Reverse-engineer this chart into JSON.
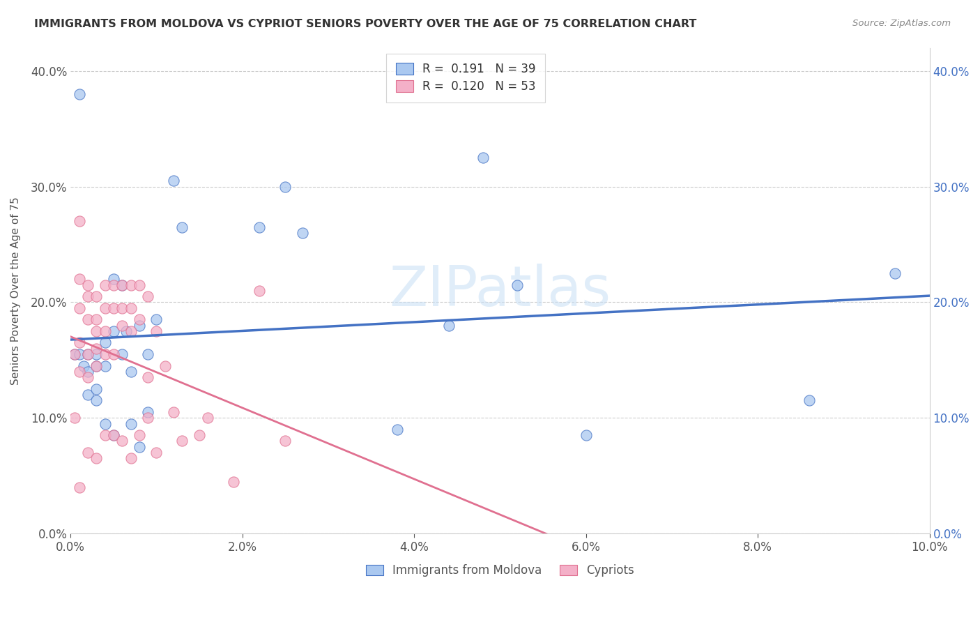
{
  "title": "IMMIGRANTS FROM MOLDOVA VS CYPRIOT SENIORS POVERTY OVER THE AGE OF 75 CORRELATION CHART",
  "source": "Source: ZipAtlas.com",
  "ylabel": "Seniors Poverty Over the Age of 75",
  "xlabel": "",
  "xlim": [
    0.0,
    0.1
  ],
  "ylim": [
    0.0,
    0.42
  ],
  "x_ticks": [
    0.0,
    0.02,
    0.04,
    0.06,
    0.08,
    0.1
  ],
  "y_ticks": [
    0.0,
    0.1,
    0.2,
    0.3,
    0.4
  ],
  "legend_labels": [
    "Immigrants from Moldova",
    "Cypriots"
  ],
  "R_moldova": 0.191,
  "N_moldova": 39,
  "R_cypriot": 0.12,
  "N_cypriot": 53,
  "moldova_color": "#aac8f0",
  "cypriot_color": "#f4b0c8",
  "moldova_line_color": "#4472c4",
  "cypriot_line_color": "#e07090",
  "watermark": "ZIPatlas",
  "background_color": "#ffffff",
  "moldova_x": [
    0.0005,
    0.001,
    0.001,
    0.0015,
    0.002,
    0.002,
    0.002,
    0.003,
    0.003,
    0.003,
    0.003,
    0.004,
    0.004,
    0.004,
    0.005,
    0.005,
    0.005,
    0.006,
    0.006,
    0.0065,
    0.007,
    0.007,
    0.008,
    0.008,
    0.009,
    0.009,
    0.01,
    0.012,
    0.013,
    0.022,
    0.025,
    0.027,
    0.038,
    0.044,
    0.048,
    0.052,
    0.06,
    0.086,
    0.096
  ],
  "moldova_y": [
    0.155,
    0.38,
    0.155,
    0.145,
    0.155,
    0.14,
    0.12,
    0.155,
    0.145,
    0.125,
    0.115,
    0.165,
    0.145,
    0.095,
    0.22,
    0.175,
    0.085,
    0.215,
    0.155,
    0.175,
    0.14,
    0.095,
    0.18,
    0.075,
    0.155,
    0.105,
    0.185,
    0.305,
    0.265,
    0.265,
    0.3,
    0.26,
    0.09,
    0.18,
    0.325,
    0.215,
    0.085,
    0.115,
    0.225
  ],
  "cypriot_x": [
    0.0005,
    0.0005,
    0.001,
    0.001,
    0.001,
    0.001,
    0.001,
    0.001,
    0.002,
    0.002,
    0.002,
    0.002,
    0.002,
    0.002,
    0.003,
    0.003,
    0.003,
    0.003,
    0.003,
    0.003,
    0.004,
    0.004,
    0.004,
    0.004,
    0.004,
    0.005,
    0.005,
    0.005,
    0.005,
    0.006,
    0.006,
    0.006,
    0.006,
    0.007,
    0.007,
    0.007,
    0.007,
    0.008,
    0.008,
    0.008,
    0.009,
    0.009,
    0.009,
    0.01,
    0.01,
    0.011,
    0.012,
    0.013,
    0.015,
    0.016,
    0.019,
    0.022,
    0.025
  ],
  "cypriot_y": [
    0.155,
    0.1,
    0.27,
    0.22,
    0.195,
    0.165,
    0.14,
    0.04,
    0.215,
    0.205,
    0.185,
    0.155,
    0.135,
    0.07,
    0.205,
    0.185,
    0.175,
    0.16,
    0.145,
    0.065,
    0.215,
    0.195,
    0.175,
    0.155,
    0.085,
    0.215,
    0.195,
    0.155,
    0.085,
    0.215,
    0.195,
    0.18,
    0.08,
    0.215,
    0.195,
    0.175,
    0.065,
    0.215,
    0.185,
    0.085,
    0.205,
    0.135,
    0.1,
    0.175,
    0.07,
    0.145,
    0.105,
    0.08,
    0.085,
    0.1,
    0.045,
    0.21,
    0.08
  ]
}
